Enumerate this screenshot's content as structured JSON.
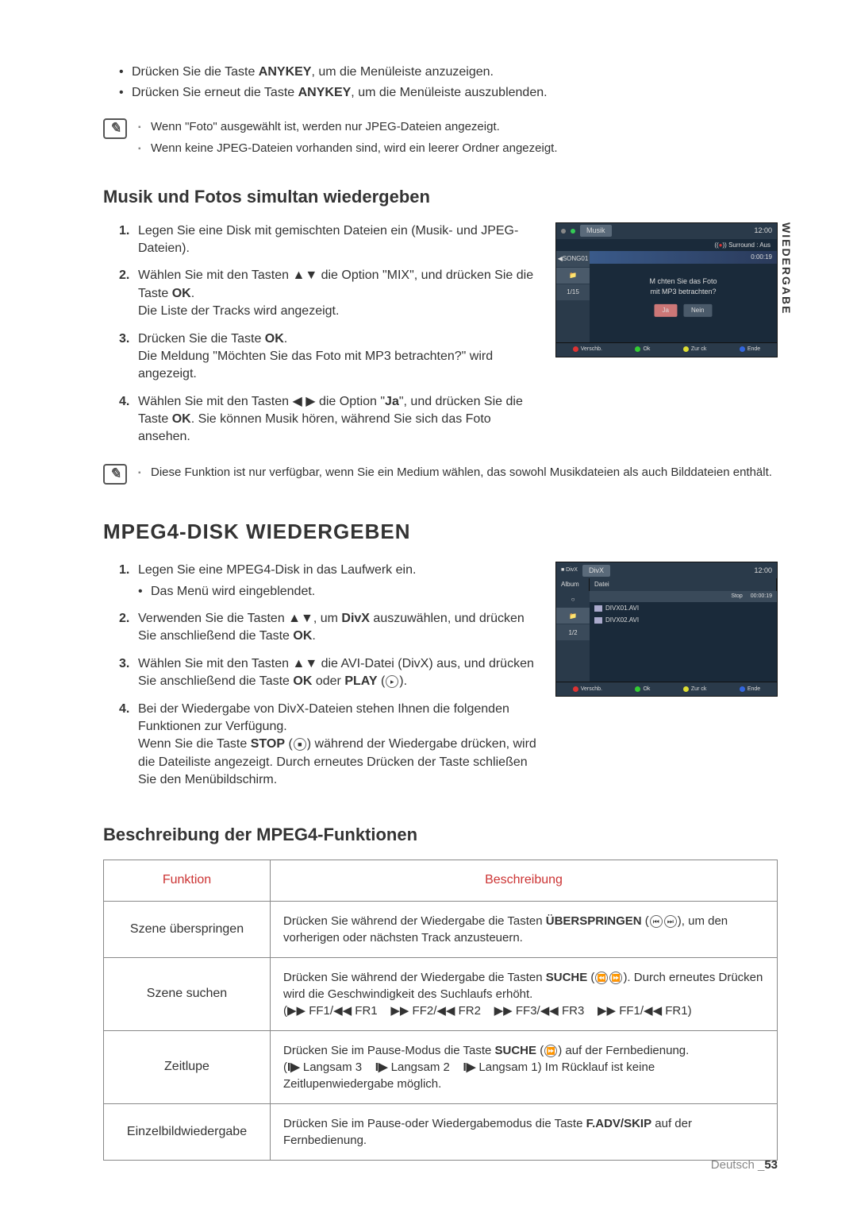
{
  "side_tab": "WIEDERGABE",
  "top_bullets": [
    {
      "pre": "Drücken Sie die Taste ",
      "b": "ANYKEY",
      "post": ", um die Menüleiste anzuzeigen."
    },
    {
      "pre": "Drücken Sie erneut die Taste ",
      "b": "ANYKEY",
      "post": ", um die Menüleiste auszublenden."
    }
  ],
  "note1": [
    "Wenn \"Foto\" ausgewählt ist, werden nur JPEG-Dateien angezeigt.",
    "Wenn keine JPEG-Dateien vorhanden sind, wird ein leerer Ordner angezeigt."
  ],
  "section1": {
    "title": "Musik und Fotos simultan wiedergeben",
    "steps": [
      "Legen Sie eine Disk mit gemischten Dateien ein (Musik- und JPEG-Dateien).",
      "Wählen Sie mit den Tasten ▲▼ die Option \"MIX\", und drücken Sie die Taste <b>OK</b>.<br>Die Liste der Tracks wird angezeigt.",
      "Drücken Sie die Taste <b>OK</b>.<br>Die Meldung \"Möchten Sie das Foto mit MP3 betrachten?\" wird angezeigt.",
      "Wählen Sie mit den Tasten ◀ ▶ die Option \"<b>Ja</b>\", und drücken Sie die Taste <b>OK</b>. Sie können Musik hören, während Sie sich das Foto ansehen."
    ]
  },
  "screen1": {
    "top_label": "Musik",
    "time": "12:00",
    "surround": "Surround : Aus",
    "side_song": "SONG01",
    "side_count": "1/15",
    "counter": "0:00:19",
    "dialog_l1": "M chten Sie das Foto",
    "dialog_l2": "mit MP3 betrachten?",
    "btn_yes": "Ja",
    "btn_no": "Nein",
    "foot": [
      "Verschb.",
      "Ok",
      "Zur ck",
      "Ende"
    ]
  },
  "note2": "Diese Funktion ist nur verfügbar, wenn Sie ein Medium wählen, das sowohl Musikdateien als auch Bilddateien enthält.",
  "section2": {
    "title": "MPEG4-DISK WIEDERGEBEN",
    "steps": [
      {
        "main": "Legen Sie eine MPEG4-Disk in das Laufwerk ein.",
        "sub": "Das Menü wird eingeblendet."
      },
      {
        "main": "Verwenden Sie die Tasten ▲▼, um <b>DivX</b> auszuwählen, und drücken Sie anschließend die Taste <b>OK</b>."
      },
      {
        "main": "Wählen Sie mit den Tasten ▲▼ die AVI-Datei (DivX) aus, und drücken Sie anschließend die Taste <b>OK</b> oder <b>PLAY</b> (<span class=\"inline-icon\">▸</span>)."
      },
      {
        "main": "Bei der Wiedergabe von DivX-Dateien stehen Ihnen die folgenden Funktionen zur Verfügung.<br>Wenn Sie die Taste <b>STOP</b> (<span class=\"inline-icon\">■</span>) während der Wiedergabe drücken, wird die Dateiliste angezeigt. Durch erneutes Drücken der Taste schließen Sie den Menübildschirm."
      }
    ]
  },
  "screen2": {
    "top_label": "DivX",
    "time": "12:00",
    "cols": [
      "Album",
      "Datei"
    ],
    "status_stop": "Stop",
    "status_time": "00:00:19",
    "side_count": "1/2",
    "files": [
      "DIVX01.AVI",
      "DIVX02.AVI"
    ],
    "foot": [
      "Verschb.",
      "Ok",
      "Zur ck",
      "Ende"
    ]
  },
  "section3": {
    "title": "Beschreibung der MPEG4-Funktionen",
    "headers": [
      "Funktion",
      "Beschreibung"
    ],
    "rows": [
      {
        "fn": "Szene überspringen",
        "desc": "Drücken Sie während der Wiedergabe die Tasten <b>ÜBERSPRINGEN</b> (<span class=\"inline-icon\">⏮</span><span class=\"inline-icon\">⏭</span>), um den vorherigen oder nächsten Track anzusteuern."
      },
      {
        "fn": "Szene suchen",
        "desc": "Drücken Sie während der Wiedergabe die Tasten <b>SUCHE</b> (<span class=\"inline-icon\">⏪</span><span class=\"inline-icon\">⏩</span>). Durch erneutes Drücken wird die Geschwindigkeit des Suchlaufs erhöht.<br>(▶▶ FF1/◀◀ FR1 &nbsp;&nbsp; ▶▶ FF2/◀◀ FR2 &nbsp;&nbsp; ▶▶ FF3/◀◀ FR3 &nbsp;&nbsp; ▶▶ FF1/◀◀ FR1)"
      },
      {
        "fn": "Zeitlupe",
        "desc": "Drücken Sie im Pause-Modus die Taste <b>SUCHE</b> (<span class=\"inline-icon\">⏩</span>) auf der Fernbedienung.<br>(<b>I▶</b> Langsam 3 &nbsp;&nbsp; <b>I▶</b> Langsam 2 &nbsp;&nbsp; <b>I▶</b> Langsam 1) Im Rücklauf ist keine Zeitlupenwiedergabe möglich."
      },
      {
        "fn": "Einzelbildwiedergabe",
        "desc": "Drücken Sie im Pause-oder Wiedergabemodus die Taste <b>F.ADV/SKIP</b> auf der Fernbedienung."
      }
    ]
  },
  "footer": {
    "lang": "Deutsch",
    "page": "53"
  }
}
